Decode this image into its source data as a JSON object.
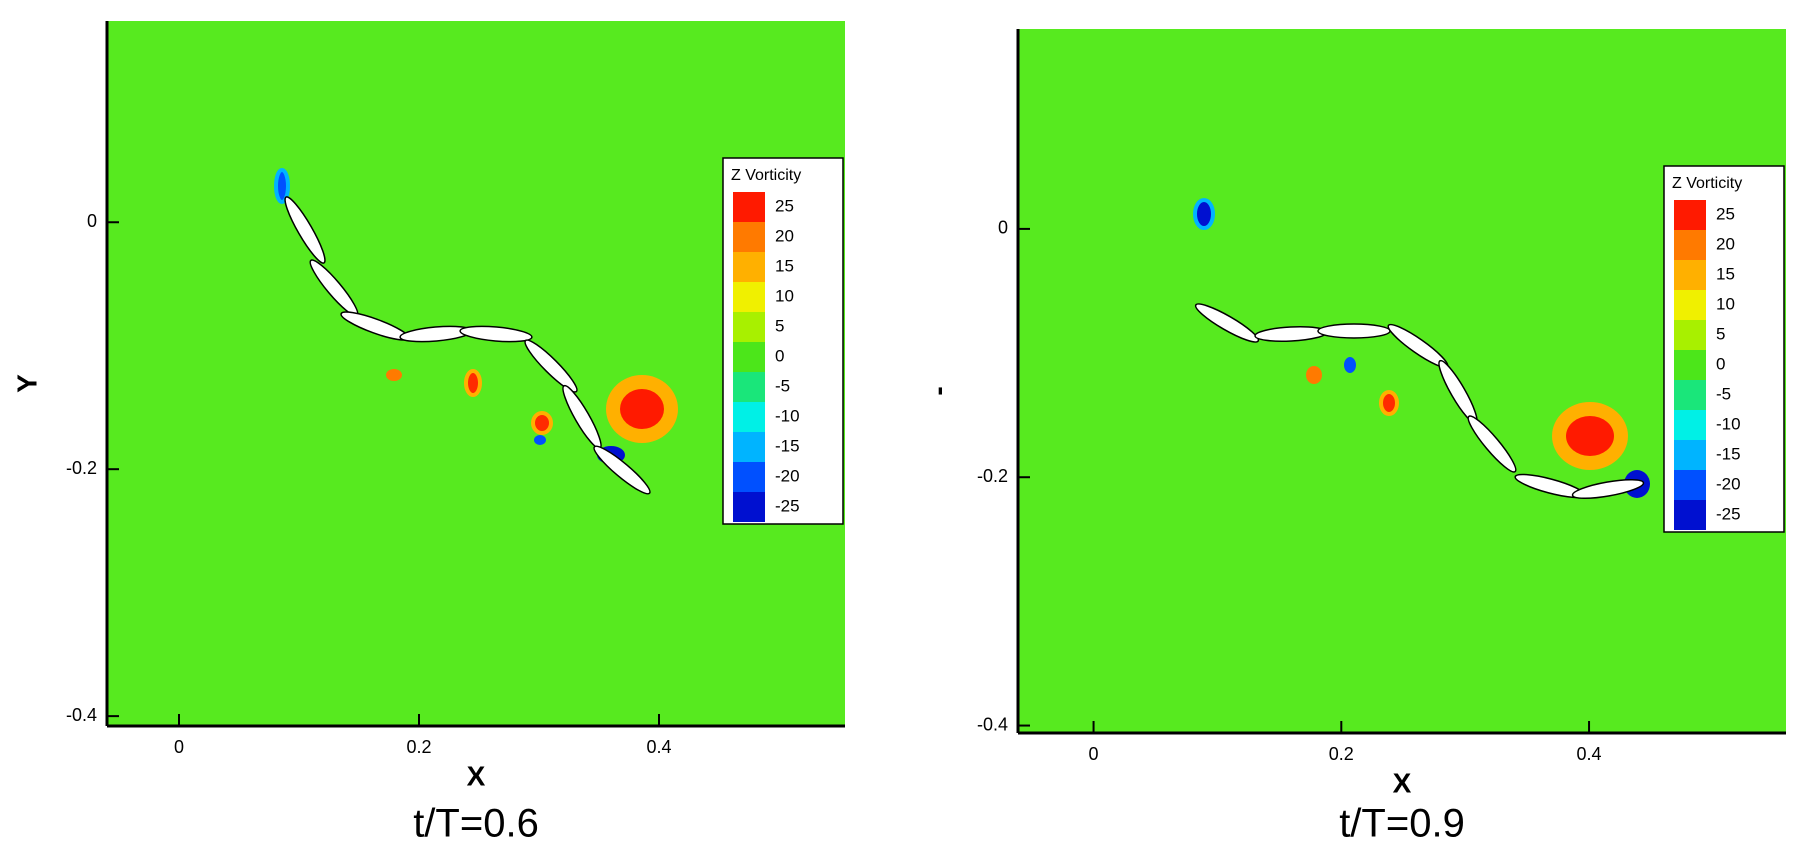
{
  "chart_data": [
    {
      "type": "contour",
      "title": "t/T=0.6",
      "x_label": "X",
      "y_label": "Y",
      "xlim": [
        -0.06,
        0.555
      ],
      "ylim": [
        -0.408,
        0.163
      ],
      "xticks": [
        0,
        0.2,
        0.4
      ],
      "yticks": [
        0,
        -0.2,
        -0.4
      ],
      "legend": "right",
      "colorbar": {
        "title": "Z Vorticity",
        "levels": [
          25,
          20,
          15,
          10,
          5,
          0,
          -5,
          -10,
          -15,
          -20,
          -25
        ],
        "colors": [
          "#ff1a00",
          "#ff7a00",
          "#ffb000",
          "#f0f000",
          "#a8f000",
          "#4ce61a",
          "#1ae67a",
          "#00f0e6",
          "#00b4ff",
          "#0050ff",
          "#0010d0"
        ]
      }
    },
    {
      "type": "contour",
      "title": "t/T=0.9",
      "x_label": "X",
      "y_label": "-",
      "xlim": [
        -0.061,
        0.559
      ],
      "ylim": [
        -0.406,
        0.161
      ],
      "xticks": [
        0,
        0.2,
        0.4
      ],
      "yticks": [
        0,
        -0.2,
        -0.4
      ],
      "legend": "right",
      "colorbar": {
        "title": "Z Vorticity",
        "levels": [
          25,
          20,
          15,
          10,
          5,
          0,
          -5,
          -10,
          -15,
          -20,
          -25
        ],
        "colors": [
          "#ff1a00",
          "#ff7a00",
          "#ffb000",
          "#f0f000",
          "#a8f000",
          "#4ce61a",
          "#1ae67a",
          "#00f0e6",
          "#00b4ff",
          "#0050ff",
          "#0010d0"
        ]
      }
    }
  ]
}
